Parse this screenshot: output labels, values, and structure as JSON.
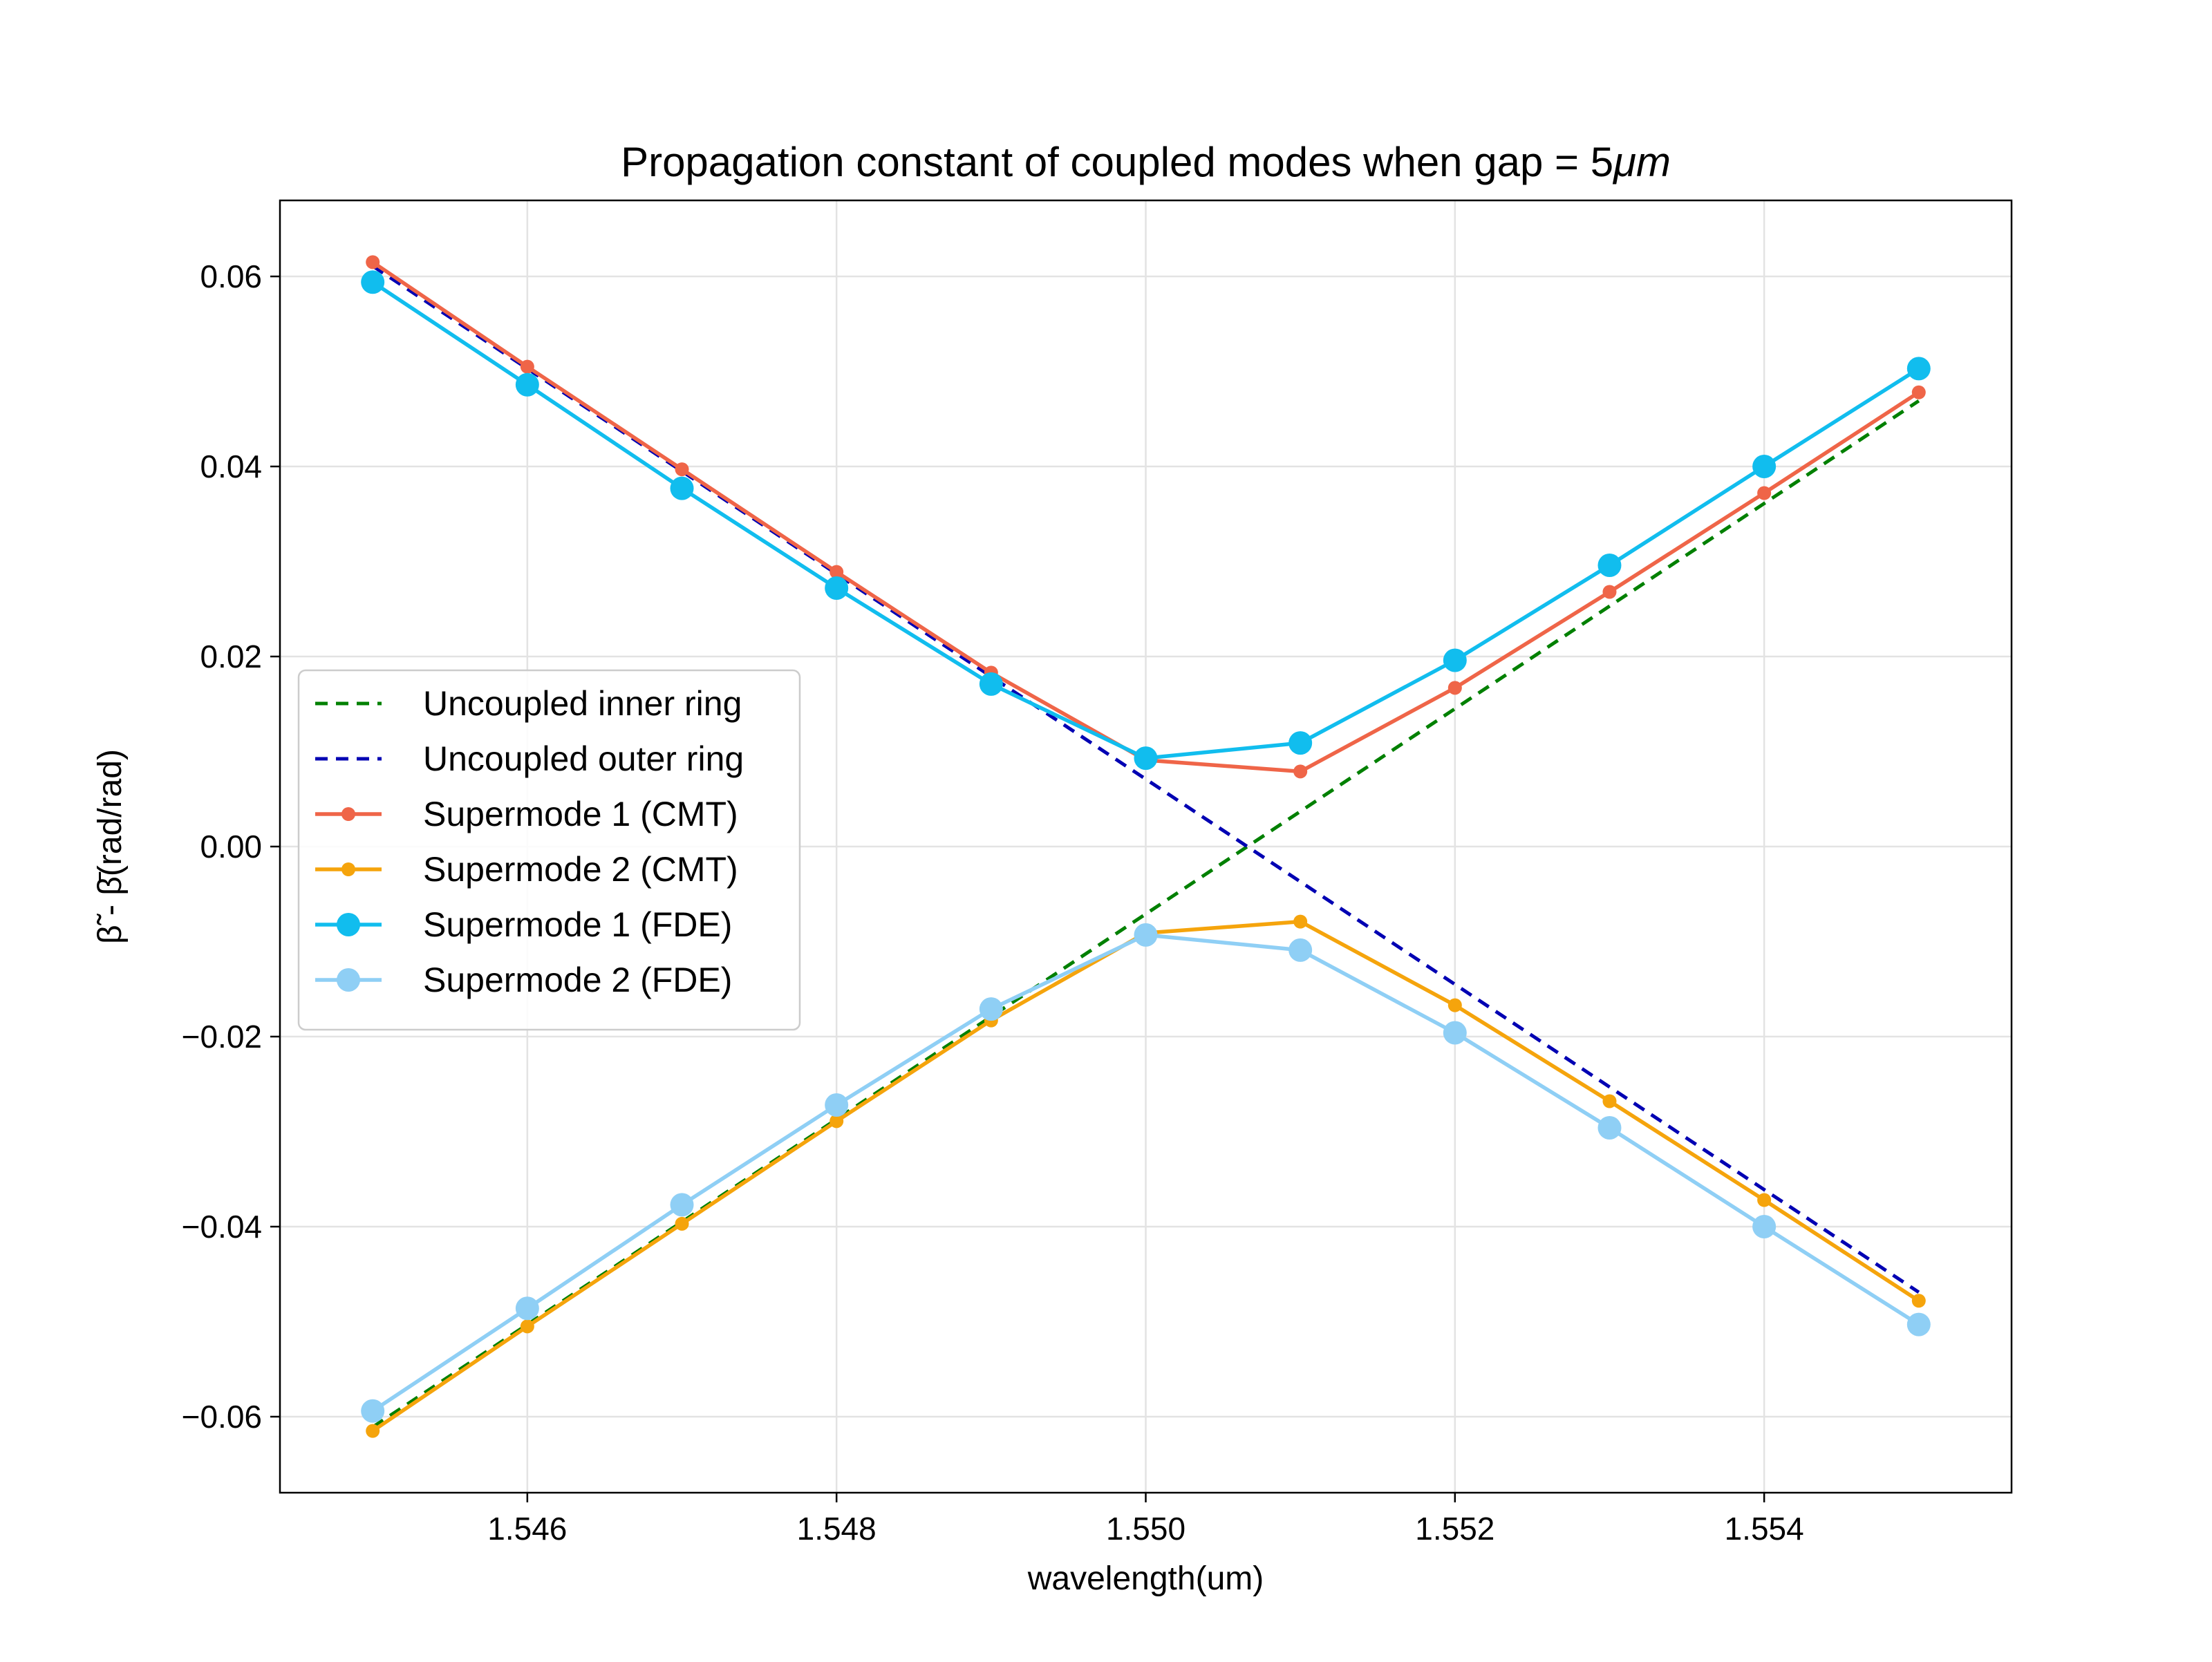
{
  "chart_data": {
    "type": "line",
    "title": "Propagation constant of coupled modes when gap = 5",
    "title_unit": "μm",
    "xlabel": "wavelength(um)",
    "ylabel": "β̃ - β̄(rad/rad)",
    "xlim": [
      1.5444,
      1.5556
    ],
    "ylim": [
      -0.068,
      0.068
    ],
    "x_ticks": [
      1.546,
      1.548,
      1.55,
      1.552,
      1.554
    ],
    "x_tick_labels": [
      "1.546",
      "1.548",
      "1.550",
      "1.552",
      "1.554"
    ],
    "y_ticks": [
      0.06,
      0.04,
      0.02,
      0.0,
      -0.02,
      -0.04,
      -0.06
    ],
    "y_tick_labels": [
      "0.06",
      "0.04",
      "0.02",
      "0.00",
      "−0.02",
      "−0.04",
      "−0.06"
    ],
    "grid": true,
    "legend_position": "center-left",
    "x": [
      1.545,
      1.546,
      1.547,
      1.548,
      1.549,
      1.55,
      1.551,
      1.552,
      1.553,
      1.554,
      1.555
    ],
    "series": [
      {
        "name": "Uncoupled inner ring",
        "color": "#008000",
        "style": "dashed",
        "marker": "none",
        "values": [
          -0.0611,
          -0.0503,
          -0.0395,
          -0.0287,
          -0.0179,
          -0.0071,
          0.0037,
          0.0145,
          0.0253,
          0.0361,
          0.0469
        ]
      },
      {
        "name": "Uncoupled outer ring",
        "color": "#0000b3",
        "style": "dashed",
        "marker": "none",
        "values": [
          0.0611,
          0.0503,
          0.0395,
          0.0287,
          0.0179,
          0.0071,
          -0.0037,
          -0.0145,
          -0.0253,
          -0.0361,
          -0.0469
        ]
      },
      {
        "name": "Supermode 1 (CMT)",
        "color": "#ef6548",
        "style": "solid",
        "marker": "small",
        "values": [
          0.0615,
          0.0505,
          0.0397,
          0.0289,
          0.0183,
          0.0091,
          0.0079,
          0.0167,
          0.0268,
          0.0372,
          0.0478
        ]
      },
      {
        "name": "Supermode 2 (CMT)",
        "color": "#f5a40c",
        "style": "solid",
        "marker": "small",
        "values": [
          -0.0615,
          -0.0505,
          -0.0397,
          -0.0289,
          -0.0183,
          -0.0091,
          -0.0079,
          -0.0167,
          -0.0268,
          -0.0372,
          -0.0478
        ]
      },
      {
        "name": "Supermode 1 (FDE)",
        "color": "#11bdee",
        "style": "solid",
        "marker": "large",
        "values": [
          0.0594,
          0.0486,
          0.0377,
          0.0272,
          0.0171,
          0.0093,
          0.0109,
          0.0196,
          0.0296,
          0.04,
          0.0503
        ]
      },
      {
        "name": "Supermode 2 (FDE)",
        "color": "#8fcff5",
        "style": "solid",
        "marker": "large",
        "values": [
          -0.0594,
          -0.0486,
          -0.0377,
          -0.0272,
          -0.0171,
          -0.0093,
          -0.0109,
          -0.0196,
          -0.0296,
          -0.04,
          -0.0503
        ]
      }
    ]
  }
}
